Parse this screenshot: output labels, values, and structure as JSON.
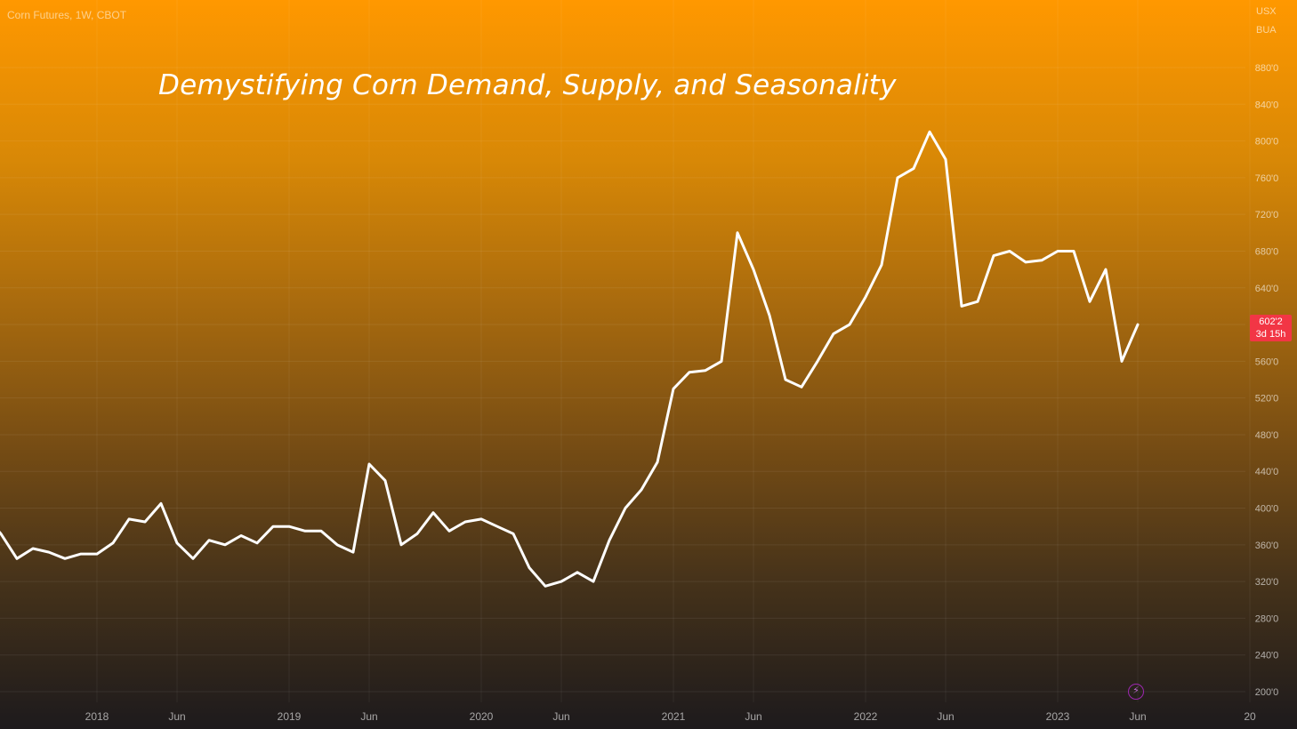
{
  "header": {
    "symbol": "Corn Futures, 1W, CBOT",
    "currency": "USX",
    "unit": "BUA"
  },
  "price_tag": {
    "price": "602'2",
    "countdown": "3d 15h"
  },
  "colors": {
    "line": "#ffffff",
    "price_tag": "#f23645",
    "background_top": "#ff9800",
    "background_bottom": "#1d1a1c"
  },
  "icons": {
    "replay": "lightning-icon"
  },
  "chart_data": {
    "type": "line",
    "title": "Demystifying Corn Demand, Supply, and Seasonality",
    "xlabel": "",
    "ylabel": "",
    "ylim": [
      190,
      910
    ],
    "grid": true,
    "y_ticks": [
      {
        "value": 200,
        "label": "200'0"
      },
      {
        "value": 240,
        "label": "240'0"
      },
      {
        "value": 280,
        "label": "280'0"
      },
      {
        "value": 320,
        "label": "320'0"
      },
      {
        "value": 360,
        "label": "360'0"
      },
      {
        "value": 400,
        "label": "400'0"
      },
      {
        "value": 440,
        "label": "440'0"
      },
      {
        "value": 480,
        "label": "480'0"
      },
      {
        "value": 520,
        "label": "520'0"
      },
      {
        "value": 560,
        "label": "560'0"
      },
      {
        "value": 600,
        "label": "600'0"
      },
      {
        "value": 640,
        "label": "640'0"
      },
      {
        "value": 680,
        "label": "680'0"
      },
      {
        "value": 720,
        "label": "720'0"
      },
      {
        "value": 760,
        "label": "760'0"
      },
      {
        "value": 800,
        "label": "800'0"
      },
      {
        "value": 840,
        "label": "840'0"
      },
      {
        "value": 880,
        "label": "880'0"
      }
    ],
    "x_ticks": [
      {
        "date": "2018-01",
        "label": "2018"
      },
      {
        "date": "2018-06",
        "label": "Jun"
      },
      {
        "date": "2019-01",
        "label": "2019"
      },
      {
        "date": "2019-06",
        "label": "Jun"
      },
      {
        "date": "2020-01",
        "label": "2020"
      },
      {
        "date": "2020-06",
        "label": "Jun"
      },
      {
        "date": "2021-01",
        "label": "2021"
      },
      {
        "date": "2021-06",
        "label": "Jun"
      },
      {
        "date": "2022-01",
        "label": "2022"
      },
      {
        "date": "2022-06",
        "label": "Jun"
      },
      {
        "date": "2023-01",
        "label": "2023"
      },
      {
        "date": "2023-06",
        "label": "Jun"
      },
      {
        "date": "2024-01",
        "label": "20"
      }
    ],
    "series": [
      {
        "name": "",
        "x": [
          "2017-06",
          "2017-07",
          "2017-08",
          "2017-09",
          "2017-10",
          "2017-11",
          "2017-12",
          "2018-01",
          "2018-02",
          "2018-03",
          "2018-04",
          "2018-05",
          "2018-06",
          "2018-07",
          "2018-08",
          "2018-09",
          "2018-10",
          "2018-11",
          "2018-12",
          "2019-01",
          "2019-02",
          "2019-03",
          "2019-04",
          "2019-05",
          "2019-06",
          "2019-07",
          "2019-08",
          "2019-09",
          "2019-10",
          "2019-11",
          "2019-12",
          "2020-01",
          "2020-02",
          "2020-03",
          "2020-04",
          "2020-05",
          "2020-06",
          "2020-07",
          "2020-08",
          "2020-09",
          "2020-10",
          "2020-11",
          "2020-12",
          "2021-01",
          "2021-02",
          "2021-03",
          "2021-04",
          "2021-05",
          "2021-06",
          "2021-07",
          "2021-08",
          "2021-09",
          "2021-10",
          "2021-11",
          "2021-12",
          "2022-01",
          "2022-02",
          "2022-03",
          "2022-04",
          "2022-05",
          "2022-06",
          "2022-07",
          "2022-08",
          "2022-09",
          "2022-10",
          "2022-11",
          "2022-12",
          "2023-01",
          "2023-02",
          "2023-03",
          "2023-04",
          "2023-05",
          "2023-06"
        ],
        "values": [
          392,
          372,
          345,
          356,
          352,
          345,
          350,
          350,
          362,
          388,
          385,
          405,
          362,
          345,
          365,
          360,
          370,
          362,
          380,
          380,
          375,
          375,
          360,
          352,
          448,
          430,
          360,
          372,
          395,
          375,
          385,
          388,
          380,
          372,
          335,
          315,
          320,
          330,
          320,
          365,
          400,
          420,
          450,
          530,
          548,
          550,
          560,
          700,
          660,
          610,
          540,
          532,
          560,
          590,
          600,
          630,
          665,
          760,
          770,
          810,
          780,
          620,
          625,
          675,
          680,
          668,
          670,
          680,
          680,
          625,
          660,
          560,
          600
        ],
        "color": "#ffffff"
      }
    ]
  }
}
